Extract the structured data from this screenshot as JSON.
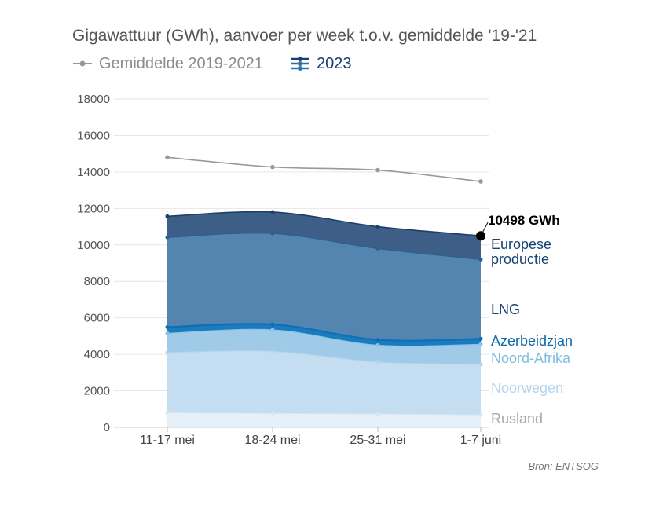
{
  "chart_data": {
    "type": "area",
    "title": "Gigawattuur (GWh), aanvoer per week t.o.v. gemiddelde '19-'21",
    "legend": [
      {
        "label": "Gemiddelde 2019-2021",
        "color": "#999999"
      },
      {
        "label": "2023",
        "color": "#154273"
      }
    ],
    "categories": [
      "11-17 mei",
      "18-24 mei",
      "25-31 mei",
      "1-7 juni"
    ],
    "ylim": [
      0,
      18000
    ],
    "yticks": [
      0,
      2000,
      4000,
      6000,
      8000,
      10000,
      12000,
      14000,
      16000,
      18000
    ],
    "stacked": true,
    "average_line": {
      "name": "Gemiddelde 2019-2021",
      "values": [
        14800,
        14270,
        14100,
        13480
      ],
      "color": "#999999"
    },
    "series": [
      {
        "name": "Rusland",
        "values": [
          800,
          760,
          730,
          680
        ],
        "color": "#e6f0f8",
        "label_color": "#aaaaaa"
      },
      {
        "name": "Noorwegen",
        "values": [
          3300,
          3400,
          2850,
          2770
        ],
        "color": "#c4ddf0",
        "label_color": "#b5d4ec"
      },
      {
        "name": "Noord-Afrika",
        "values": [
          1050,
          1180,
          920,
          1100
        ],
        "color": "#9fcbe8",
        "label_color": "#7fbbe0"
      },
      {
        "name": "Azerbeidzjan",
        "values": [
          340,
          300,
          300,
          300
        ],
        "color": "#1a7cbf",
        "label_color": "#0b6aa8"
      },
      {
        "name": "LNG",
        "values": [
          4920,
          4990,
          5000,
          4350
        ],
        "color": "#5485b0",
        "label_color": "#154273"
      },
      {
        "name": "Europese productie",
        "values": [
          1160,
          1170,
          1200,
          1298
        ],
        "color": "#3c5e87",
        "label_color": "#154273"
      }
    ],
    "callout": {
      "text": "10498 GWh",
      "value": 10498,
      "category": "1-7 juni"
    }
  },
  "source": "Bron: ENTSOG"
}
